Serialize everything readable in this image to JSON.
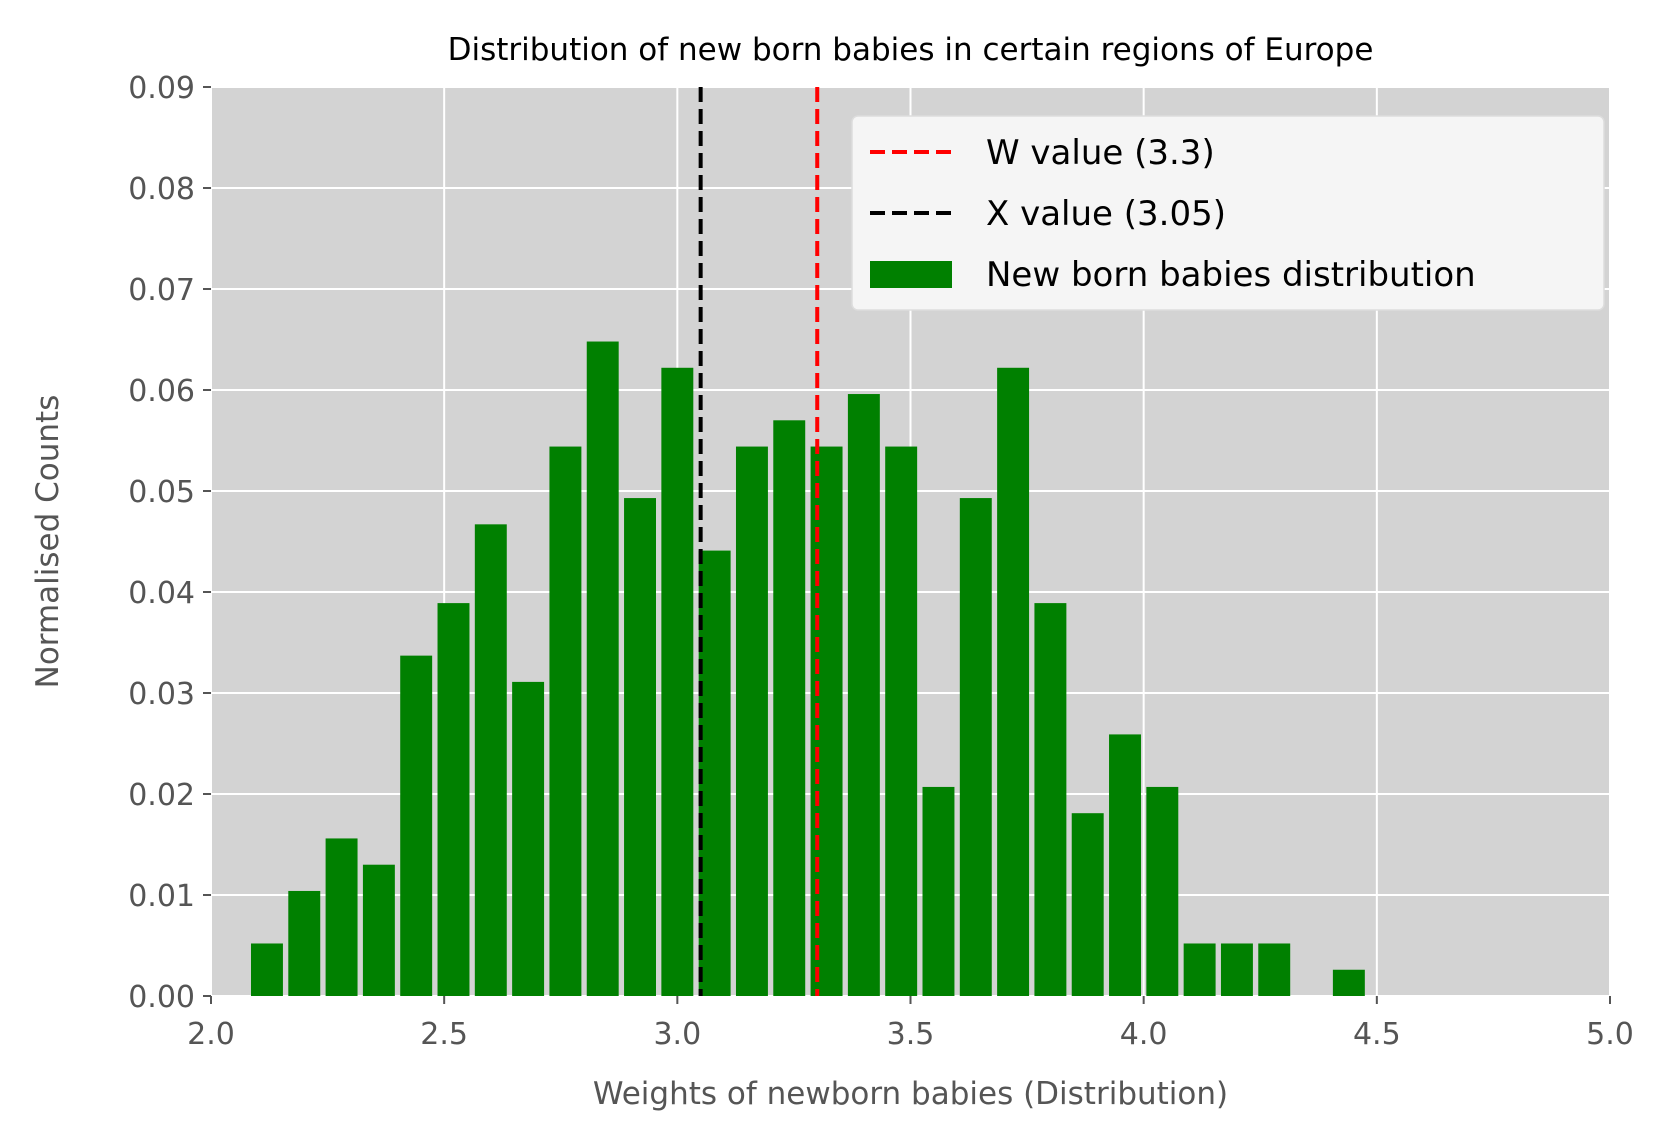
{
  "chart_data": {
    "type": "bar",
    "title": "Distribution of new born babies in certain regions of Europe",
    "xlabel": "Weights of newborn babies (Distribution)",
    "ylabel": "Normalised Counts",
    "xlim": [
      2.0,
      5.0
    ],
    "ylim": [
      0.0,
      0.09
    ],
    "xticks": [
      "2.0",
      "2.5",
      "3.0",
      "3.5",
      "4.0",
      "4.5",
      "5.0"
    ],
    "xtick_values": [
      2.0,
      2.5,
      3.0,
      3.5,
      4.0,
      4.5,
      5.0
    ],
    "yticks": [
      "0.00",
      "0.01",
      "0.02",
      "0.03",
      "0.04",
      "0.05",
      "0.06",
      "0.07",
      "0.08",
      "0.09"
    ],
    "ytick_values": [
      0.0,
      0.01,
      0.02,
      0.03,
      0.04,
      0.05,
      0.06,
      0.07,
      0.08,
      0.09
    ],
    "grid": true,
    "background_color": "#d3d3d3",
    "grid_color": "#ffffff",
    "legend_position": "top-right",
    "bin_width": 0.08,
    "bins": [
      {
        "x": 2.12,
        "value": 0.0052
      },
      {
        "x": 2.2,
        "value": 0.0104
      },
      {
        "x": 2.28,
        "value": 0.0156
      },
      {
        "x": 2.36,
        "value": 0.013
      },
      {
        "x": 2.44,
        "value": 0.0337
      },
      {
        "x": 2.52,
        "value": 0.0389
      },
      {
        "x": 2.6,
        "value": 0.0467
      },
      {
        "x": 2.68,
        "value": 0.0311
      },
      {
        "x": 2.76,
        "value": 0.0544
      },
      {
        "x": 2.84,
        "value": 0.0648
      },
      {
        "x": 2.92,
        "value": 0.0493
      },
      {
        "x": 3.0,
        "value": 0.0622
      },
      {
        "x": 3.08,
        "value": 0.0441
      },
      {
        "x": 3.16,
        "value": 0.0544
      },
      {
        "x": 3.24,
        "value": 0.057
      },
      {
        "x": 3.32,
        "value": 0.0544
      },
      {
        "x": 3.4,
        "value": 0.0596
      },
      {
        "x": 3.48,
        "value": 0.0544
      },
      {
        "x": 3.56,
        "value": 0.0207
      },
      {
        "x": 3.64,
        "value": 0.0493
      },
      {
        "x": 3.72,
        "value": 0.0622
      },
      {
        "x": 3.8,
        "value": 0.0389
      },
      {
        "x": 3.88,
        "value": 0.0181
      },
      {
        "x": 3.96,
        "value": 0.0259
      },
      {
        "x": 4.04,
        "value": 0.0207
      },
      {
        "x": 4.12,
        "value": 0.0052
      },
      {
        "x": 4.2,
        "value": 0.0052
      },
      {
        "x": 4.28,
        "value": 0.0052
      },
      {
        "x": 4.44,
        "value": 0.0026
      }
    ],
    "series": [
      {
        "name": "New born babies distribution",
        "color": "#008000"
      }
    ],
    "vlines": [
      {
        "name": "W value (3.3)",
        "x": 3.3,
        "color": "#ff0000",
        "style": "dashed"
      },
      {
        "name": "X value (3.05)",
        "x": 3.05,
        "color": "#000000",
        "style": "dashed"
      }
    ],
    "legend": [
      {
        "label": "W value (3.3)",
        "kind": "line",
        "color": "#ff0000"
      },
      {
        "label": "X value (3.05)",
        "kind": "line",
        "color": "#000000"
      },
      {
        "label": "New born babies distribution",
        "kind": "patch",
        "color": "#008000"
      }
    ]
  }
}
